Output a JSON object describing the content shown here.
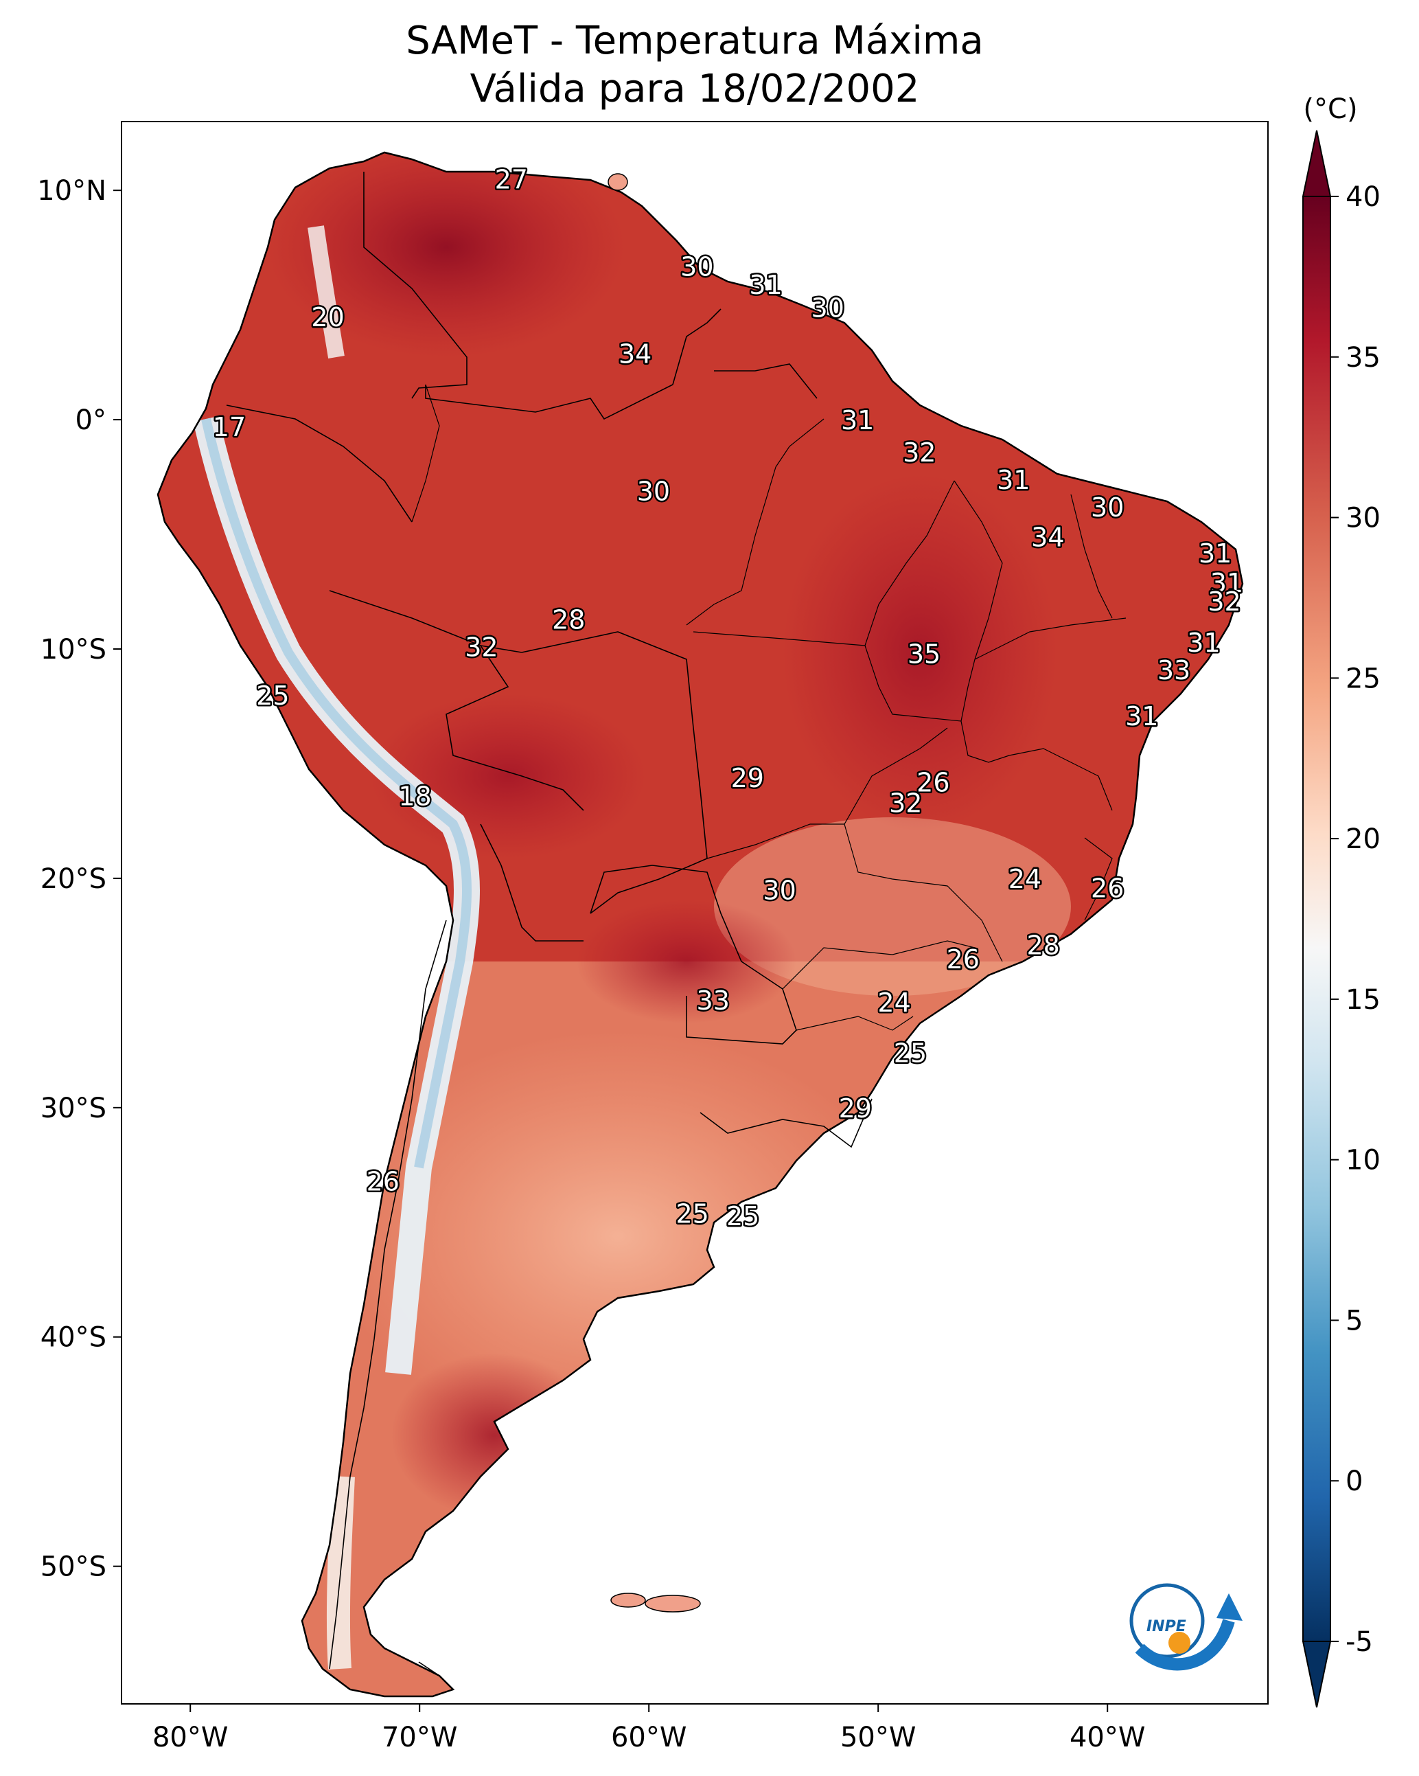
{
  "title": {
    "line1": "SAMeT - Temperatura Máxima",
    "line2": "Válida para 18/02/2002"
  },
  "map": {
    "lon_range": [
      -83,
      -33
    ],
    "lat_range": [
      -56,
      13
    ],
    "lon_ticks": [
      {
        "value": -80,
        "label": "80°W"
      },
      {
        "value": -70,
        "label": "70°W"
      },
      {
        "value": -60,
        "label": "60°W"
      },
      {
        "value": -50,
        "label": "50°W"
      },
      {
        "value": -40,
        "label": "40°W"
      }
    ],
    "lat_ticks": [
      {
        "value": 10,
        "label": "10°N"
      },
      {
        "value": 0,
        "label": "0°"
      },
      {
        "value": -10,
        "label": "10°S"
      },
      {
        "value": -20,
        "label": "20°S"
      },
      {
        "value": -30,
        "label": "30°S"
      },
      {
        "value": -40,
        "label": "40°S"
      },
      {
        "value": -50,
        "label": "50°S"
      }
    ],
    "station_labels": [
      {
        "text": "27",
        "lon": -66.0,
        "lat": 10.5
      },
      {
        "text": "20",
        "lon": -74.0,
        "lat": 4.5
      },
      {
        "text": "17",
        "lon": -78.3,
        "lat": -0.3
      },
      {
        "text": "30",
        "lon": -57.9,
        "lat": 6.7
      },
      {
        "text": "31",
        "lon": -54.9,
        "lat": 5.9
      },
      {
        "text": "30",
        "lon": -52.2,
        "lat": 4.9
      },
      {
        "text": "34",
        "lon": -60.6,
        "lat": 2.9
      },
      {
        "text": "31",
        "lon": -50.9,
        "lat": 0.0
      },
      {
        "text": "32",
        "lon": -48.2,
        "lat": -1.4
      },
      {
        "text": "31",
        "lon": -44.1,
        "lat": -2.6
      },
      {
        "text": "30",
        "lon": -40.0,
        "lat": -3.8
      },
      {
        "text": "34",
        "lon": -42.6,
        "lat": -5.1
      },
      {
        "text": "30",
        "lon": -59.8,
        "lat": -3.1
      },
      {
        "text": "31",
        "lon": -35.3,
        "lat": -5.8
      },
      {
        "text": "31",
        "lon": -34.8,
        "lat": -7.1
      },
      {
        "text": "32",
        "lon": -34.9,
        "lat": -7.9
      },
      {
        "text": "28",
        "lon": -63.5,
        "lat": -8.7
      },
      {
        "text": "32",
        "lon": -67.3,
        "lat": -9.9
      },
      {
        "text": "35",
        "lon": -48.0,
        "lat": -10.2
      },
      {
        "text": "31",
        "lon": -35.8,
        "lat": -9.7
      },
      {
        "text": "33",
        "lon": -37.1,
        "lat": -10.9
      },
      {
        "text": "31",
        "lon": -38.5,
        "lat": -12.9
      },
      {
        "text": "25",
        "lon": -76.4,
        "lat": -12.0
      },
      {
        "text": "26",
        "lon": -47.6,
        "lat": -15.8
      },
      {
        "text": "32",
        "lon": -48.8,
        "lat": -16.7
      },
      {
        "text": "29",
        "lon": -55.7,
        "lat": -15.6
      },
      {
        "text": "18",
        "lon": -70.2,
        "lat": -16.4
      },
      {
        "text": "24",
        "lon": -43.6,
        "lat": -20.0
      },
      {
        "text": "26",
        "lon": -40.0,
        "lat": -20.4
      },
      {
        "text": "30",
        "lon": -54.3,
        "lat": -20.5
      },
      {
        "text": "28",
        "lon": -42.8,
        "lat": -22.9
      },
      {
        "text": "26",
        "lon": -46.3,
        "lat": -23.5
      },
      {
        "text": "33",
        "lon": -57.2,
        "lat": -25.3
      },
      {
        "text": "24",
        "lon": -49.3,
        "lat": -25.4
      },
      {
        "text": "25",
        "lon": -48.6,
        "lat": -27.6
      },
      {
        "text": "29",
        "lon": -51.0,
        "lat": -30.0
      },
      {
        "text": "26",
        "lon": -71.6,
        "lat": -33.2
      },
      {
        "text": "25",
        "lon": -58.1,
        "lat": -34.6
      },
      {
        "text": "25",
        "lon": -55.9,
        "lat": -34.7
      }
    ]
  },
  "colorbar": {
    "unit": "(°C)",
    "vmin": -5,
    "vmax": 40,
    "ticks": [
      {
        "value": 40,
        "label": "40"
      },
      {
        "value": 35,
        "label": "35"
      },
      {
        "value": 30,
        "label": "30"
      },
      {
        "value": 25,
        "label": "25"
      },
      {
        "value": 20,
        "label": "20"
      },
      {
        "value": 15,
        "label": "15"
      },
      {
        "value": 10,
        "label": "10"
      },
      {
        "value": 5,
        "label": "5"
      },
      {
        "value": 0,
        "label": "0"
      },
      {
        "value": -5,
        "label": "-5"
      }
    ],
    "palette": [
      "#67001f",
      "#b2182b",
      "#d6604d",
      "#f4a582",
      "#fddbc7",
      "#f7f7f7",
      "#d1e5f0",
      "#92c5de",
      "#4393c3",
      "#2166ac",
      "#053061"
    ]
  },
  "logo": {
    "text": "INPE"
  }
}
